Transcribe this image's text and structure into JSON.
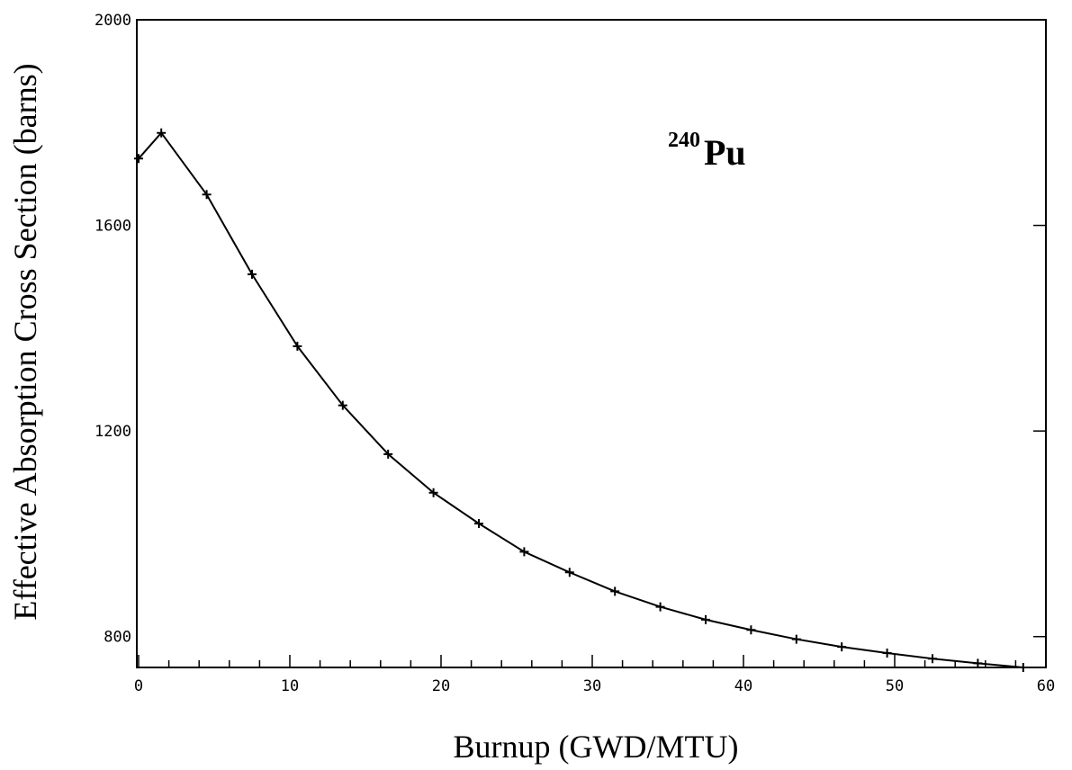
{
  "chart_data": {
    "type": "line",
    "title": "",
    "xlabel": "Burnup (GWD/MTU)",
    "ylabel": "Effective Absorption Cross Section (barns)",
    "xlim": [
      0,
      60
    ],
    "ylim": [
      740,
      2000
    ],
    "x_ticks": [
      0,
      10,
      20,
      30,
      40,
      50,
      60
    ],
    "y_ticks": [
      800,
      1200,
      1600,
      2000
    ],
    "x_minor_step": 2,
    "grid": false,
    "annotation": {
      "superscript": "240",
      "text": "Pu"
    },
    "series": [
      {
        "marker": "plus",
        "color": "#000000",
        "x": [
          0,
          1.5,
          4.5,
          7.5,
          10.5,
          13.5,
          16.5,
          19.5,
          22.5,
          25.5,
          28.5,
          31.5,
          34.5,
          37.5,
          40.5,
          43.5,
          46.5,
          49.5,
          52.5,
          55.5,
          58.5
        ],
        "y": [
          1730,
          1780,
          1660,
          1505,
          1365,
          1250,
          1155,
          1080,
          1020,
          965,
          925,
          888,
          858,
          833,
          813,
          795,
          780,
          768,
          757,
          748,
          740
        ]
      }
    ]
  }
}
